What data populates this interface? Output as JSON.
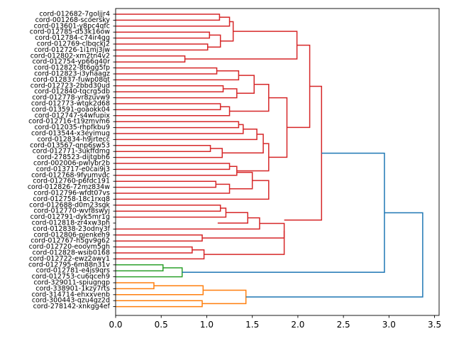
{
  "chart_data": {
    "type": "dendrogram",
    "orientation": "left",
    "title": "",
    "xlabel": "",
    "ylabel": "",
    "xlim": [
      0,
      3.55
    ],
    "xticks": [
      0.0,
      0.5,
      1.0,
      1.5,
      2.0,
      2.5,
      3.0,
      3.5
    ],
    "xtick_labels": [
      "0.0",
      "0.5",
      "1.0",
      "1.5",
      "2.0",
      "2.5",
      "3.0",
      "3.5"
    ],
    "colors": {
      "red": "#d62728",
      "green": "#2ca02c",
      "orange": "#ff7f0e",
      "blue": "#1f77b4"
    },
    "leaves": [
      "cord-012682-7goljjr4",
      "cord-001268-scoersky",
      "cord-013601-y8pc4qfc",
      "cord-012785-d53k16ow",
      "cord-012784-c74ir4gg",
      "cord-012769-clbqckj2",
      "cord-012726-1i1mj3jw",
      "cord-012802-xm2tn4v2",
      "cord-012754-yp66g40r",
      "cord-012822-8t6gg5fp",
      "cord-012823-i3yhaagz",
      "cord-012837-fuwp08qt",
      "cord-012723-2bbd30ud",
      "cord-012840-tqcrg5db",
      "cord-012778-yr8zuvw9",
      "cord-012773-wtgk2d68",
      "cord-013591-goaokk04",
      "cord-012747-s4wfupix",
      "cord-012716-t19zmvm6",
      "cord-012035-rhpfkbu9",
      "cord-013544-x3eyimug",
      "cord-012834-h9jrtecc",
      "cord-013567-qnp6sw53",
      "cord-012771-3ukffdmg",
      "cord-278523-dijtgbh6",
      "cord-002006-pwlybr2b",
      "cord-013717-e0cai9j3",
      "cord-012768-9fyumvdc",
      "cord-012760-p6fdc191",
      "cord-012826-72mz834w",
      "cord-012796-wfdt07vs",
      "cord-012758-18c1rxq8",
      "cord-012688-d0m23sgk",
      "cord-012770-wvf8swyj",
      "cord-012791-dyk5mr1g",
      "cord-012818-zr4xw3ph",
      "cord-012838-23odny3f",
      "cord-012806-pjenkeh9",
      "cord-012767-h5gv9g62",
      "cord-012720-eoovm5gh",
      "cord-012828-wsib0168",
      "cord-012722-ewz2awy1",
      "cord-012795-6m88n31v",
      "cord-012781-e4js9qrs",
      "cord-012753-cu6qceh9",
      "cord-329011-spiugngp",
      "cord-338901-1kzy7rts",
      "cord-314714-ehxxvenb",
      "cord-300443-qzu4gz2d",
      "cord-278142-xnkgg4ef"
    ],
    "links": [
      {
        "color": "red",
        "y": [
          0,
          0,
          1,
          1
        ],
        "x": [
          0,
          1.14,
          1.14,
          0
        ]
      },
      {
        "color": "red",
        "y": [
          0.5,
          0.5,
          2,
          2
        ],
        "x": [
          1.14,
          1.25,
          1.25,
          0
        ]
      },
      {
        "color": "red",
        "y": [
          3,
          3,
          4,
          4
        ],
        "x": [
          0,
          1.03,
          1.03,
          0
        ]
      },
      {
        "color": "red",
        "y": [
          5,
          5,
          6,
          6
        ],
        "x": [
          0,
          1.01,
          1.01,
          0
        ]
      },
      {
        "color": "red",
        "y": [
          3.5,
          3.5,
          5.5,
          5.5
        ],
        "x": [
          1.03,
          1.15,
          1.15,
          1.01
        ]
      },
      {
        "color": "red",
        "y": [
          1.25,
          1.25,
          4.5,
          4.5
        ],
        "x": [
          1.25,
          1.29,
          1.29,
          1.15
        ]
      },
      {
        "color": "red",
        "y": [
          7,
          7,
          8,
          8
        ],
        "x": [
          0,
          0.76,
          0.76,
          0
        ]
      },
      {
        "color": "red",
        "y": [
          2.875,
          2.875,
          7.5,
          7.5
        ],
        "x": [
          1.29,
          1.99,
          1.99,
          0.76
        ]
      },
      {
        "color": "red",
        "y": [
          9,
          9,
          10,
          10
        ],
        "x": [
          0,
          1.11,
          1.11,
          0
        ]
      },
      {
        "color": "red",
        "y": [
          9.5,
          9.5,
          11,
          11
        ],
        "x": [
          1.11,
          1.35,
          1.35,
          0
        ]
      },
      {
        "color": "red",
        "y": [
          12,
          12,
          13,
          13
        ],
        "x": [
          0,
          1.18,
          1.18,
          0
        ]
      },
      {
        "color": "red",
        "y": [
          12.5,
          12.5,
          14,
          14
        ],
        "x": [
          1.18,
          1.33,
          1.33,
          0
        ]
      },
      {
        "color": "red",
        "y": [
          10.25,
          10.25,
          13.25,
          13.25
        ],
        "x": [
          1.35,
          1.52,
          1.52,
          1.33
        ]
      },
      {
        "color": "red",
        "y": [
          15,
          15,
          16,
          16
        ],
        "x": [
          0,
          1.15,
          1.15,
          0
        ]
      },
      {
        "color": "red",
        "y": [
          15.5,
          15.5,
          17,
          17
        ],
        "x": [
          1.15,
          1.25,
          1.25,
          0
        ]
      },
      {
        "color": "red",
        "y": [
          11.75,
          11.75,
          16.25,
          16.25
        ],
        "x": [
          1.52,
          1.68,
          1.68,
          1.25
        ]
      },
      {
        "color": "red",
        "y": [
          18,
          18,
          19,
          19
        ],
        "x": [
          0,
          1.35,
          1.35,
          0
        ]
      },
      {
        "color": "red",
        "y": [
          18.5,
          18.5,
          20,
          20
        ],
        "x": [
          1.35,
          1.4,
          1.4,
          0
        ]
      },
      {
        "color": "red",
        "y": [
          19.25,
          19.25,
          21,
          21
        ],
        "x": [
          1.4,
          1.55,
          1.55,
          0
        ]
      },
      {
        "color": "red",
        "y": [
          22,
          22,
          23,
          23
        ],
        "x": [
          0,
          1.04,
          1.04,
          0
        ]
      },
      {
        "color": "red",
        "y": [
          22.5,
          22.5,
          24,
          24
        ],
        "x": [
          1.04,
          1.17,
          1.17,
          0
        ]
      },
      {
        "color": "red",
        "y": [
          20.125,
          20.125,
          23.25,
          23.25
        ],
        "x": [
          1.55,
          1.62,
          1.62,
          1.17
        ]
      },
      {
        "color": "red",
        "y": [
          25,
          25,
          26,
          26
        ],
        "x": [
          0,
          1.25,
          1.25,
          0
        ]
      },
      {
        "color": "red",
        "y": [
          25.5,
          25.5,
          27,
          27
        ],
        "x": [
          1.25,
          1.33,
          1.33,
          0
        ]
      },
      {
        "color": "red",
        "y": [
          21.6875,
          21.6875,
          26.25,
          26.25
        ],
        "x": [
          1.62,
          1.68,
          1.68,
          1.33
        ]
      },
      {
        "color": "red",
        "y": [
          14,
          14,
          23.97,
          23.97
        ],
        "x": [
          1.68,
          1.88,
          1.88,
          1.68
        ]
      },
      {
        "color": "red",
        "y": [
          5.19,
          5.19,
          18.98,
          18.98
        ],
        "x": [
          1.99,
          2.13,
          2.13,
          1.88
        ]
      },
      {
        "color": "red",
        "y": [
          28,
          28,
          29,
          29
        ],
        "x": [
          0,
          1.1,
          1.1,
          0
        ]
      },
      {
        "color": "red",
        "y": [
          28.5,
          28.5,
          30,
          30
        ],
        "x": [
          1.1,
          1.25,
          1.25,
          0
        ]
      },
      {
        "color": "red",
        "y": [
          26.5,
          26.5,
          29.25,
          29.25
        ],
        "x": [
          1.33,
          1.5,
          1.5,
          1.25
        ]
      },
      {
        "color": "red",
        "y": [
          27.875,
          27.875,
          31,
          31
        ],
        "x": [
          1.5,
          1.68,
          1.68,
          0
        ]
      },
      {
        "color": "red",
        "y": [
          32,
          32,
          33,
          33
        ],
        "x": [
          0,
          1.15,
          1.15,
          0
        ]
      },
      {
        "color": "red",
        "y": [
          32.5,
          32.5,
          34,
          34
        ],
        "x": [
          1.15,
          1.21,
          1.21,
          0
        ]
      },
      {
        "color": "red",
        "y": [
          33.25,
          33.25,
          35,
          35
        ],
        "x": [
          1.21,
          1.45,
          1.45,
          1.12
        ]
      },
      {
        "color": "red",
        "y": [
          34.125,
          34.125,
          36,
          36
        ],
        "x": [
          1.45,
          1.58,
          1.58,
          0
        ]
      },
      {
        "color": "red",
        "y": [
          37,
          37,
          38,
          38
        ],
        "x": [
          0,
          0.95,
          0.95,
          0
        ]
      },
      {
        "color": "red",
        "y": [
          35.0625,
          35.0625,
          37.5,
          37.5
        ],
        "x": [
          1.58,
          1.85,
          1.85,
          0.95
        ]
      },
      {
        "color": "red",
        "y": [
          39,
          39,
          40,
          40
        ],
        "x": [
          0,
          0.84,
          0.84,
          0
        ]
      },
      {
        "color": "red",
        "y": [
          39.5,
          39.5,
          41,
          41
        ],
        "x": [
          0.84,
          0.97,
          0.97,
          0
        ]
      },
      {
        "color": "red",
        "y": [
          36.28,
          36.28,
          40.25,
          40.25
        ],
        "x": [
          1.85,
          1.85,
          1.85,
          0.97
        ]
      },
      {
        "color": "red",
        "y": [
          12.08,
          12.08,
          34.5,
          34.5
        ],
        "x": [
          2.13,
          2.26,
          2.26,
          1.85
        ]
      },
      {
        "color": "green",
        "y": [
          42,
          42,
          43,
          43
        ],
        "x": [
          0,
          0.52,
          0.52,
          0
        ]
      },
      {
        "color": "green",
        "y": [
          42.5,
          42.5,
          44,
          44
        ],
        "x": [
          0.52,
          0.73,
          0.73,
          0
        ]
      },
      {
        "color": "orange",
        "y": [
          45,
          45,
          46,
          46
        ],
        "x": [
          0,
          0.42,
          0.42,
          0
        ]
      },
      {
        "color": "orange",
        "y": [
          45.5,
          45.5,
          47,
          47
        ],
        "x": [
          0.42,
          0.96,
          0.96,
          0
        ]
      },
      {
        "color": "orange",
        "y": [
          48,
          48,
          49,
          49
        ],
        "x": [
          0,
          0.95,
          0.95,
          0
        ]
      },
      {
        "color": "orange",
        "y": [
          46.25,
          46.25,
          48.5,
          48.5
        ],
        "x": [
          0.96,
          1.43,
          1.43,
          0.95
        ]
      },
      {
        "color": "blue",
        "y": [
          23.29,
          23.29,
          43.25,
          43.25
        ],
        "x": [
          2.26,
          2.95,
          2.95,
          0.73
        ]
      },
      {
        "color": "blue",
        "y": [
          33.27,
          33.27,
          47.375,
          47.375
        ],
        "x": [
          2.95,
          3.37,
          3.37,
          1.43
        ]
      }
    ]
  }
}
